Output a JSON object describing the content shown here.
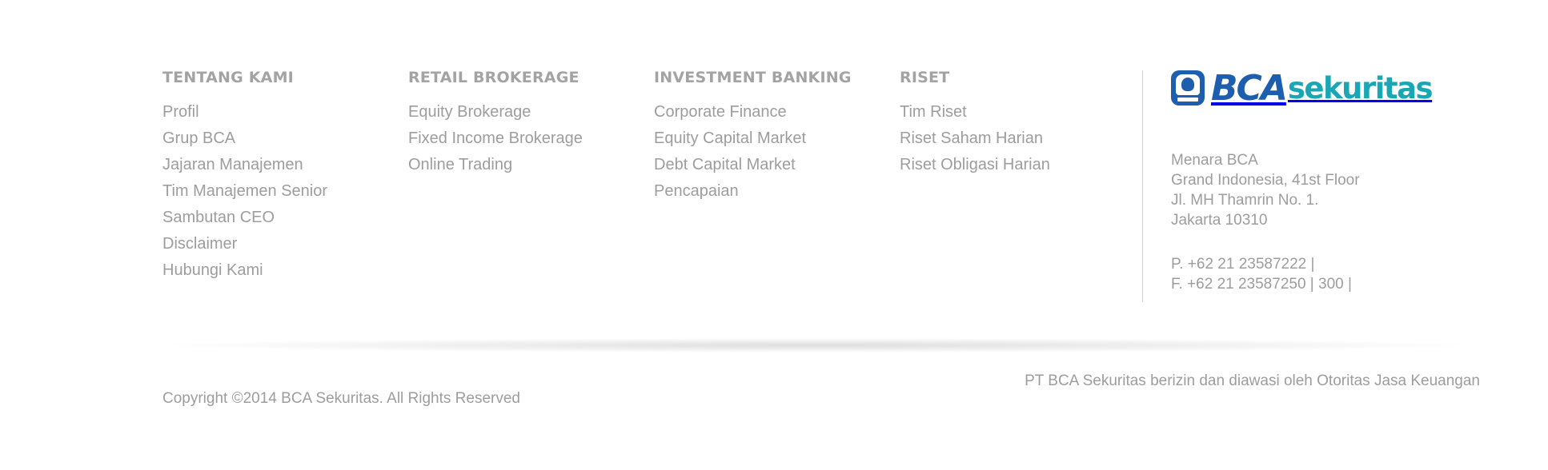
{
  "columns": [
    {
      "title": "TENTANG KAMI",
      "links": [
        "Profil",
        "Grup BCA",
        "Jajaran Manajemen",
        "Tim Manajemen Senior",
        "Sambutan CEO",
        "Disclaimer",
        "Hubungi Kami"
      ]
    },
    {
      "title": "RETAIL BROKERAGE",
      "links": [
        "Equity Brokerage",
        "Fixed Income Brokerage",
        "Online Trading"
      ]
    },
    {
      "title": "INVESTMENT BANKING",
      "links": [
        "Corporate Finance",
        "Equity Capital Market",
        "Debt Capital Market",
        "Pencapaian"
      ]
    },
    {
      "title": "RISET",
      "links": [
        "Tim Riset",
        "Riset Saham Harian",
        "Riset Obligasi Harian"
      ]
    }
  ],
  "logo": {
    "part1": "BCA",
    "part2": "sekuritas",
    "emblem_icon": "bca-emblem-icon",
    "colors": {
      "bca": "#1d5fae",
      "sekuritas": "#19a6b5"
    }
  },
  "address": [
    "Menara BCA",
    "Grand Indonesia, 41st Floor",
    "Jl. MH Thamrin No. 1.",
    "Jakarta 10310"
  ],
  "contact": {
    "phone": "P. +62 21 23587222 |",
    "fax": "F. +62 21 23587250 | 300 |"
  },
  "footer": {
    "license": "PT BCA Sekuritas berizin dan diawasi oleh Otoritas Jasa Keuangan",
    "copyright": "Copyright ©2014 BCA Sekuritas. All Rights Reserved"
  }
}
